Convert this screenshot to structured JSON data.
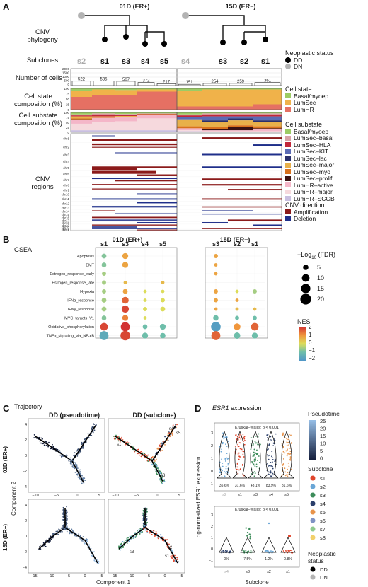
{
  "panels": {
    "A": "A",
    "B": "B",
    "C": "C",
    "D": "D"
  },
  "samples": {
    "left": "01D (ER+)",
    "right": "15D (ER−)"
  },
  "rows": {
    "cnv_phylogeny": "CNV\nphylogeny",
    "subclones": "Subclones",
    "number_of_cells": "Number of cells",
    "cell_state": "Cell state\ncomposition (%)",
    "cell_substate": "Cell substate\ncomposition (%)",
    "cnv_regions": "CNV\nregions"
  },
  "subclones_left": [
    "s2",
    "s1",
    "s3",
    "s4",
    "s5"
  ],
  "subclones_right": [
    "s4",
    "s3",
    "s2",
    "s1"
  ],
  "cell_counts_left": [
    522,
    535,
    507,
    372,
    217
  ],
  "cell_counts_right": [
    151,
    254,
    259,
    361
  ],
  "count_axis_ticks": [
    "2000",
    "1500",
    "1000",
    "500",
    "0"
  ],
  "pct_ticks": [
    "100",
    "75",
    "50",
    "25",
    "0"
  ],
  "chromosomes": [
    "chr1",
    "chr2",
    "chr3",
    "chr4",
    "chr5",
    "chr6",
    "chr7",
    "chr8",
    "chr9",
    "chr10",
    "chr11",
    "chr12",
    "chr13",
    "chr14",
    "chr15",
    "chr16",
    "chr17",
    "chr18",
    "chr19",
    "chr20",
    "chr21",
    "chr22"
  ],
  "legends": {
    "neoplastic": {
      "title": "Neoplastic status",
      "items": [
        {
          "label": "DD",
          "color": "#000000"
        },
        {
          "label": "DN",
          "color": "#b3b3b3"
        }
      ]
    },
    "cell_state": {
      "title": "Cell state",
      "items": [
        {
          "label": "Basal/myoep",
          "color": "#9ccc65"
        },
        {
          "label": "LumSec",
          "color": "#f0b24a"
        },
        {
          "label": "LumHR",
          "color": "#e57063"
        }
      ]
    },
    "cell_substate": {
      "title": "Cell substate",
      "items": [
        {
          "label": "Basal/myoep",
          "color": "#9ccc65"
        },
        {
          "label": "LumSec–basal",
          "color": "#d7a3a8"
        },
        {
          "label": "LumSec–HLA",
          "color": "#c2273a"
        },
        {
          "label": "LumSec–KIT",
          "color": "#5b6bb5"
        },
        {
          "label": "LumSec–lac",
          "color": "#2a2f6b"
        },
        {
          "label": "LumSec–major",
          "color": "#e8b04a"
        },
        {
          "label": "LumSec–myo",
          "color": "#d9711c"
        },
        {
          "label": "LumSec–prolif",
          "color": "#3a1212"
        },
        {
          "label": "LumHR–active",
          "color": "#f4b6c8"
        },
        {
          "label": "LumHR–major",
          "color": "#f6d9dd"
        },
        {
          "label": "LumHR–SCGB",
          "color": "#c9bfe0"
        }
      ]
    },
    "cnv_direction": {
      "title": "CNV direction",
      "items": [
        {
          "label": "Amplification",
          "color": "#8b1a1a"
        },
        {
          "label": "Deletion",
          "color": "#1f2f8a"
        }
      ]
    },
    "fdr": {
      "title": "−Log",
      "sub": "10",
      "title2": " (FDR)",
      "items": [
        "5",
        "10",
        "15",
        "20"
      ]
    },
    "nes": {
      "title": "NES",
      "ticks": [
        "2",
        "1",
        "0",
        "−1",
        "−2"
      ]
    },
    "pseudotime": {
      "title": "Pseudotime",
      "ticks": [
        "25",
        "20",
        "15",
        "10",
        "5",
        "0"
      ]
    },
    "subclone": {
      "title": "Subclone",
      "items": [
        {
          "label": "s1",
          "color": "#e0452b"
        },
        {
          "label": "s2",
          "color": "#6aa6d6"
        },
        {
          "label": "s3",
          "color": "#3d8c5a"
        },
        {
          "label": "s4",
          "color": "#2b3f6b"
        },
        {
          "label": "s5",
          "color": "#e8934a"
        },
        {
          "label": "s6",
          "color": "#7f92c4"
        },
        {
          "label": "s7",
          "color": "#8ec98e"
        },
        {
          "label": "s8",
          "color": "#f2d06b"
        }
      ]
    },
    "neoplastic_status": {
      "title": "Neoplastic\nstatus",
      "items": [
        {
          "label": "DD",
          "color": "#000000"
        },
        {
          "label": "DN",
          "color": "#b3b3b3"
        }
      ]
    }
  },
  "gsea": {
    "title": "GSEA",
    "terms": [
      "Apoptosis",
      "EMT",
      "Estrogen_response_early",
      "Estrogen_response_late",
      "Hypoxia",
      "IFNα_response",
      "IFNγ_response",
      "MYC_targets_V1",
      "Oxidative_phosphorylation",
      "TNFα_signaling_via_NF‐κB"
    ],
    "left_cols": [
      "s1",
      "s3",
      "s4",
      "s5"
    ],
    "right_cols": [
      "s3",
      "s2",
      "s1"
    ]
  },
  "trajectory": {
    "title": "Trajectory",
    "col1": "DD (pseudotime)",
    "col2": "DD (subclone)",
    "xlabel": "Component 1",
    "ylabel": "Component 2",
    "row1": "01D (ER+)",
    "row2": "15D (ER−)",
    "xticks": [
      "−10",
      "−5",
      "0",
      "5"
    ],
    "xticks2": [
      "−15",
      "−10",
      "−5",
      "0",
      "5"
    ],
    "yticks1": [
      "4",
      "2",
      "0",
      "−2",
      "−4"
    ],
    "yticks2": [
      "4",
      "2",
      "0",
      "−2",
      "−4"
    ],
    "labels_top": [
      "s4",
      "s5",
      "s1",
      "s3"
    ],
    "labels_bottom": [
      "s3",
      "s2",
      "s1"
    ]
  },
  "esr1": {
    "title_gene": "ESR1",
    "title_rest": " expression",
    "ylabel": "Log-normalized ESR1 expression",
    "xlabel": "Subclone",
    "test": "Kruskal–Wallis: p < 0.001",
    "top_pct": [
      "35.6%",
      "31.6%",
      "48.1%",
      "83.9%",
      "81.6%"
    ],
    "bottom_pct": [
      "0%",
      "7.5%",
      "1.2%",
      "0.8%"
    ],
    "top_cats": [
      "s2",
      "s1",
      "s3",
      "s4",
      "s5"
    ],
    "bottom_cats": [
      "s4",
      "s3",
      "s2",
      "s1"
    ],
    "yticks_top": [
      "3",
      "2",
      "1",
      "0",
      "−1"
    ],
    "yticks_bottom": [
      "3",
      "2",
      "1",
      "0",
      "−1"
    ]
  }
}
